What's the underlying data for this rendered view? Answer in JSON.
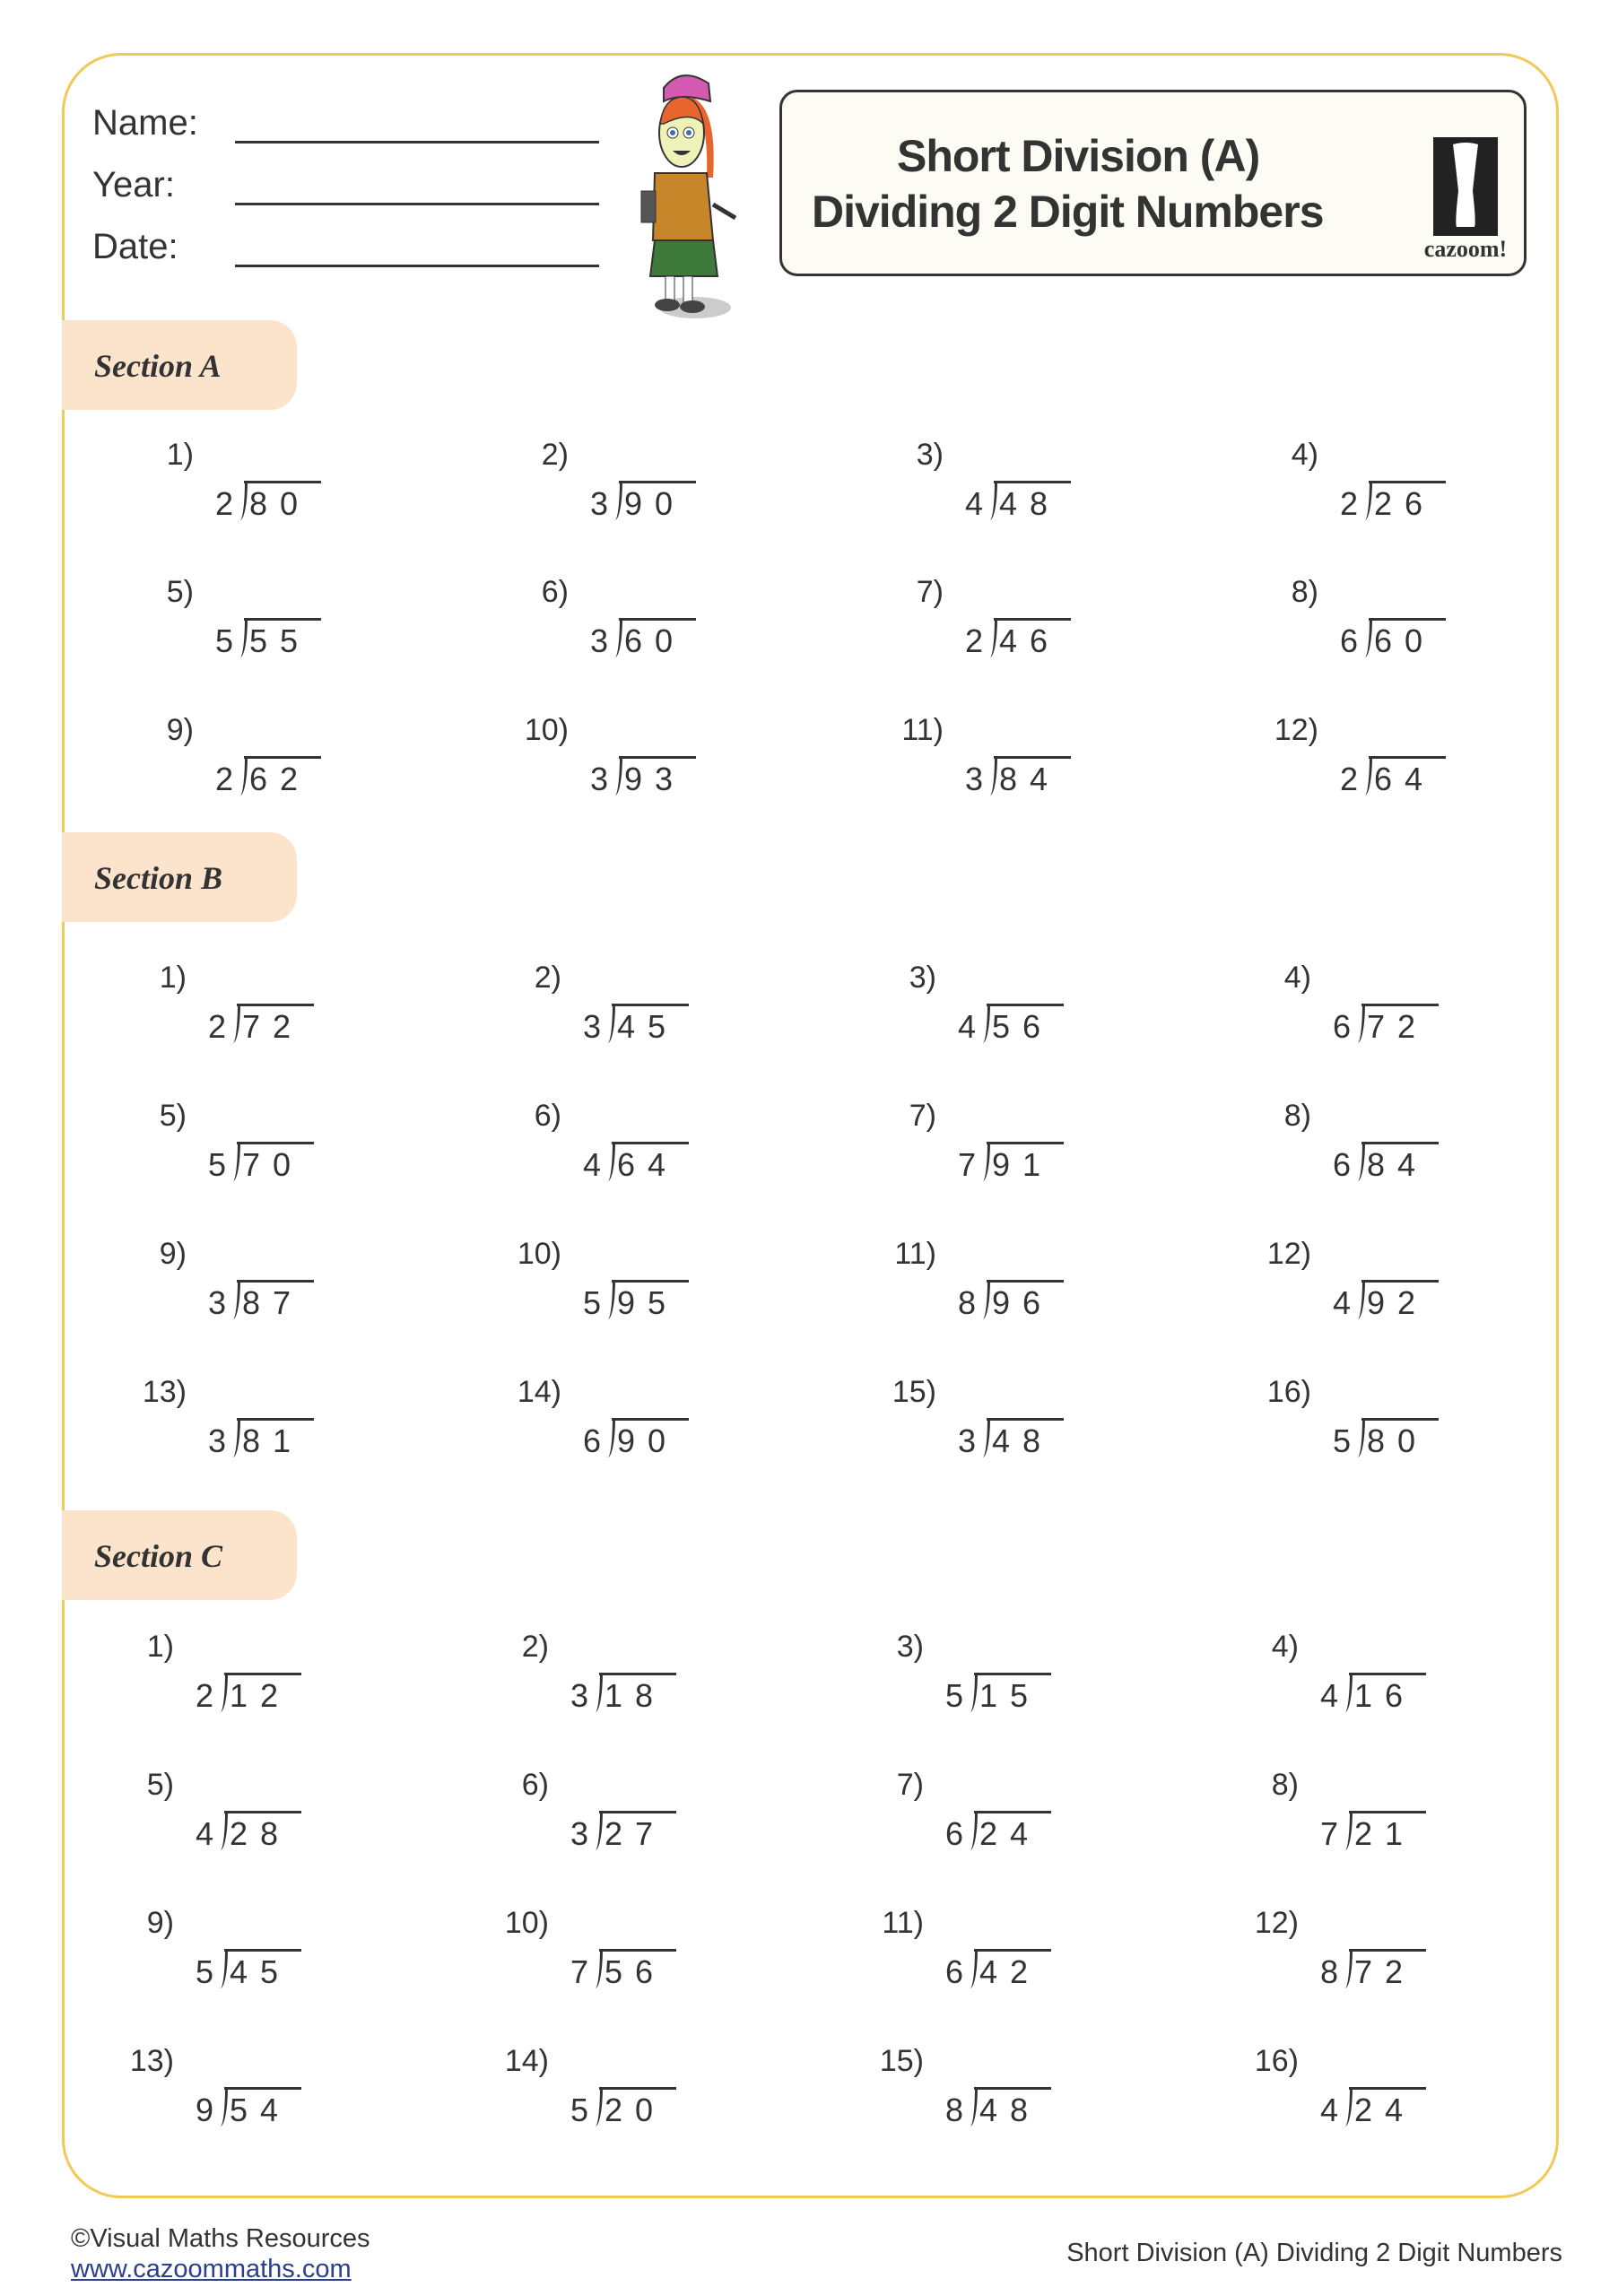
{
  "header": {
    "fields": [
      {
        "label": "Name:"
      },
      {
        "label": "Year:"
      },
      {
        "label": "Date:"
      }
    ],
    "title_line1": "Short Division (A)",
    "title_line2": "Dividing 2 Digit Numbers",
    "logo_text": "cazoom!"
  },
  "colors": {
    "border": "#f2c955",
    "section_tag": "#fce4cc",
    "title_box": "#fdfcf4",
    "text": "#333333",
    "link": "#2b3f8c"
  },
  "sections": [
    {
      "label": "Section A",
      "problems": [
        {
          "n": "1)",
          "divisor": "2",
          "dividend": "80"
        },
        {
          "n": "2)",
          "divisor": "3",
          "dividend": "90"
        },
        {
          "n": "3)",
          "divisor": "4",
          "dividend": "48"
        },
        {
          "n": "4)",
          "divisor": "2",
          "dividend": "26"
        },
        {
          "n": "5)",
          "divisor": "5",
          "dividend": "55"
        },
        {
          "n": "6)",
          "divisor": "3",
          "dividend": "60"
        },
        {
          "n": "7)",
          "divisor": "2",
          "dividend": "46"
        },
        {
          "n": "8)",
          "divisor": "6",
          "dividend": "60"
        },
        {
          "n": "9)",
          "divisor": "2",
          "dividend": "62"
        },
        {
          "n": "10)",
          "divisor": "3",
          "dividend": "93"
        },
        {
          "n": "11)",
          "divisor": "3",
          "dividend": "84"
        },
        {
          "n": "12)",
          "divisor": "2",
          "dividend": "64"
        }
      ]
    },
    {
      "label": "Section B",
      "problems": [
        {
          "n": "1)",
          "divisor": "2",
          "dividend": "72"
        },
        {
          "n": "2)",
          "divisor": "3",
          "dividend": "45"
        },
        {
          "n": "3)",
          "divisor": "4",
          "dividend": "56"
        },
        {
          "n": "4)",
          "divisor": "6",
          "dividend": "72"
        },
        {
          "n": "5)",
          "divisor": "5",
          "dividend": "70"
        },
        {
          "n": "6)",
          "divisor": "4",
          "dividend": "64"
        },
        {
          "n": "7)",
          "divisor": "7",
          "dividend": "91"
        },
        {
          "n": "8)",
          "divisor": "6",
          "dividend": "84"
        },
        {
          "n": "9)",
          "divisor": "3",
          "dividend": "87"
        },
        {
          "n": "10)",
          "divisor": "5",
          "dividend": "95"
        },
        {
          "n": "11)",
          "divisor": "8",
          "dividend": "96"
        },
        {
          "n": "12)",
          "divisor": "4",
          "dividend": "92"
        },
        {
          "n": "13)",
          "divisor": "3",
          "dividend": "81"
        },
        {
          "n": "14)",
          "divisor": "6",
          "dividend": "90"
        },
        {
          "n": "15)",
          "divisor": "3",
          "dividend": "48"
        },
        {
          "n": "16)",
          "divisor": "5",
          "dividend": "80"
        }
      ]
    },
    {
      "label": "Section C",
      "problems": [
        {
          "n": "1)",
          "divisor": "2",
          "dividend": "12"
        },
        {
          "n": "2)",
          "divisor": "3",
          "dividend": "18"
        },
        {
          "n": "3)",
          "divisor": "5",
          "dividend": "15"
        },
        {
          "n": "4)",
          "divisor": "4",
          "dividend": "16"
        },
        {
          "n": "5)",
          "divisor": "4",
          "dividend": "28"
        },
        {
          "n": "6)",
          "divisor": "3",
          "dividend": "27"
        },
        {
          "n": "7)",
          "divisor": "6",
          "dividend": "24"
        },
        {
          "n": "8)",
          "divisor": "7",
          "dividend": "21"
        },
        {
          "n": "9)",
          "divisor": "5",
          "dividend": "45"
        },
        {
          "n": "10)",
          "divisor": "7",
          "dividend": "56"
        },
        {
          "n": "11)",
          "divisor": "6",
          "dividend": "42"
        },
        {
          "n": "12)",
          "divisor": "8",
          "dividend": "72"
        },
        {
          "n": "13)",
          "divisor": "9",
          "dividend": "54"
        },
        {
          "n": "14)",
          "divisor": "5",
          "dividend": "20"
        },
        {
          "n": "15)",
          "divisor": "8",
          "dividend": "48"
        },
        {
          "n": "16)",
          "divisor": "4",
          "dividend": "24"
        }
      ]
    }
  ],
  "footer": {
    "copyright": "©Visual Maths Resources",
    "link": "www.cazoommaths.com",
    "doc_title": "Short Division (A) Dividing 2 Digit Numbers"
  }
}
